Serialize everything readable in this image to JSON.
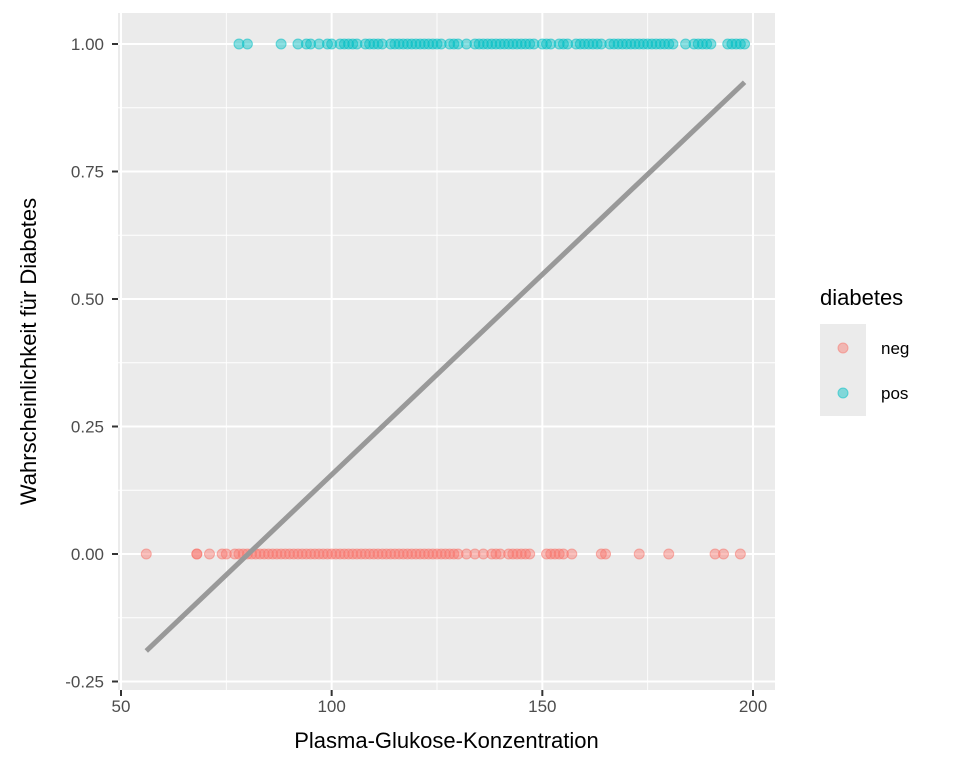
{
  "chart_data": {
    "type": "scatter",
    "xlabel": "Plasma-Glukose-Konzentration",
    "ylabel": "Wahrscheinlichkeit für Diabetes",
    "xlim": [
      50,
      200
    ],
    "ylim": [
      -0.25,
      1.0
    ],
    "x_ticks": [
      {
        "value": 50,
        "label": "50"
      },
      {
        "value": 100,
        "label": "100"
      },
      {
        "value": 150,
        "label": "150"
      },
      {
        "value": 200,
        "label": "200"
      }
    ],
    "y_ticks": [
      {
        "value": -0.25,
        "label": "-0.25"
      },
      {
        "value": 0.0,
        "label": "0.00"
      },
      {
        "value": 0.25,
        "label": "0.25"
      },
      {
        "value": 0.5,
        "label": "0.50"
      },
      {
        "value": 0.75,
        "label": "0.75"
      },
      {
        "value": 1.0,
        "label": "1.00"
      }
    ],
    "grid": true,
    "legend": {
      "title": "diabetes",
      "position": "right",
      "entries": [
        {
          "label": "neg",
          "color": "#F8766D"
        },
        {
          "label": "pos",
          "color": "#00BFC4"
        }
      ]
    },
    "series": [
      {
        "name": "neg",
        "color": "#F8766D",
        "y": 0,
        "x": [
          56,
          68,
          68,
          71,
          74,
          75,
          77,
          78,
          79,
          80,
          81,
          82,
          83,
          84,
          85,
          86,
          87,
          88,
          89,
          90,
          91,
          92,
          93,
          94,
          95,
          96,
          97,
          98,
          99,
          100,
          101,
          102,
          103,
          104,
          105,
          106,
          107,
          108,
          109,
          110,
          111,
          112,
          113,
          114,
          115,
          116,
          117,
          118,
          119,
          120,
          121,
          122,
          123,
          124,
          125,
          126,
          127,
          128,
          129,
          130,
          132,
          134,
          136,
          138,
          139,
          140,
          142,
          143,
          144,
          145,
          146,
          147,
          151,
          152,
          153,
          154,
          155,
          157,
          164,
          165,
          173,
          180,
          191,
          193,
          197
        ]
      },
      {
        "name": "pos",
        "color": "#00BFC4",
        "y": 1,
        "x": [
          78,
          80,
          88,
          92,
          94,
          95,
          97,
          99,
          100,
          102,
          103,
          104,
          105,
          106,
          108,
          109,
          110,
          111,
          112,
          114,
          115,
          116,
          117,
          118,
          119,
          120,
          121,
          122,
          123,
          124,
          125,
          126,
          128,
          129,
          130,
          132,
          134,
          135,
          136,
          137,
          138,
          139,
          140,
          141,
          142,
          143,
          144,
          145,
          146,
          147,
          148,
          150,
          151,
          152,
          154,
          155,
          156,
          158,
          159,
          160,
          161,
          162,
          163,
          164,
          166,
          167,
          168,
          169,
          170,
          171,
          172,
          173,
          174,
          175,
          176,
          177,
          178,
          179,
          180,
          181,
          184,
          186,
          187,
          188,
          189,
          190,
          194,
          195,
          196,
          197,
          198
        ]
      }
    ],
    "trend_line": {
      "color": "#999999",
      "points": [
        {
          "x": 56,
          "y": -0.19
        },
        {
          "x": 198,
          "y": 0.925
        }
      ]
    }
  }
}
